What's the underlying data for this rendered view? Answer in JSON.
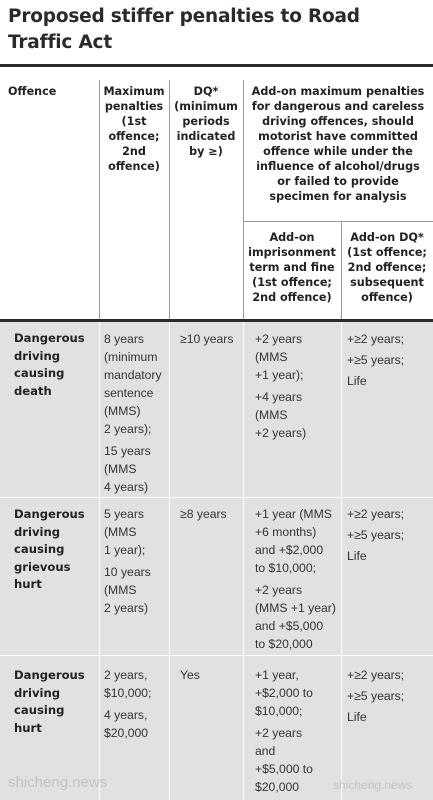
{
  "title": "Proposed stiffer penalties to Road Traffic Act",
  "columns": {
    "offence": "Offence",
    "max_penalties": [
      "Maximum",
      "penalties",
      "(1st",
      "offence;",
      "2nd",
      "offence)"
    ],
    "dq": [
      "DQ*",
      "(minimum",
      "periods",
      "indicated",
      "by ≥)"
    ],
    "addon_header": [
      "Add-on maximum penalties",
      "for dangerous and careless",
      "driving offences, should",
      "motorist have committed",
      "offence while under the",
      "influence of alcohol/drugs",
      "or failed to provide",
      "specimen for analysis"
    ],
    "addon_imprisonment": [
      "Add-on",
      "imprisonment",
      "term and fine",
      "(1st offence;",
      "2nd offence)"
    ],
    "addon_dq": [
      "Add-on DQ*",
      "(1st offence;",
      "2nd offence;",
      "subsequent",
      "offence)"
    ]
  },
  "rows": [
    {
      "offence": [
        "Dangerous",
        "driving",
        "causing",
        "death"
      ],
      "max_penalties": [
        [
          "8 years",
          "(minimum",
          "mandatory",
          "sentence",
          "(MMS)",
          "2 years);"
        ],
        [
          "15 years",
          "(MMS",
          "4 years)"
        ]
      ],
      "dq": "≥10 years",
      "addon_imprisonment": [
        [
          "+2 years",
          "(MMS",
          "+1 year);"
        ],
        [
          "+4 years",
          "(MMS",
          "+2 years)"
        ]
      ],
      "addon_dq": [
        "+≥2 years;",
        "+≥5 years;",
        "Life"
      ]
    },
    {
      "offence": [
        "Dangerous",
        "driving",
        "causing",
        "grievous",
        "hurt"
      ],
      "max_penalties": [
        [
          "5 years",
          "(MMS",
          "1 year);"
        ],
        [
          "10 years",
          "(MMS",
          "2 years)"
        ]
      ],
      "dq": "≥8 years",
      "addon_imprisonment": [
        [
          "+1 year (MMS",
          "+6 months)",
          "and +$2,000",
          "to $10,000;"
        ],
        [
          "+2 years",
          "(MMS +1 year)",
          "and +$5,000",
          "to $20,000"
        ]
      ],
      "addon_dq": [
        "+≥2 years;",
        "+≥5 years;",
        "Life"
      ]
    },
    {
      "offence": [
        "Dangerous",
        "driving",
        "causing",
        "hurt"
      ],
      "max_penalties": [
        [
          "2 years,",
          "$10,000;"
        ],
        [
          "4 years,",
          "$20,000"
        ]
      ],
      "dq": "Yes",
      "addon_imprisonment": [
        [
          "+1 year,",
          "+$2,000 to",
          "$10,000;"
        ],
        [
          "+2 years",
          "and",
          "+$5,000 to",
          "$20,000"
        ]
      ],
      "addon_dq": [
        "+≥2 years;",
        "+≥5 years;",
        "Life"
      ]
    }
  ],
  "watermarks": [
    "shicheng.news",
    "shicheng.news"
  ]
}
